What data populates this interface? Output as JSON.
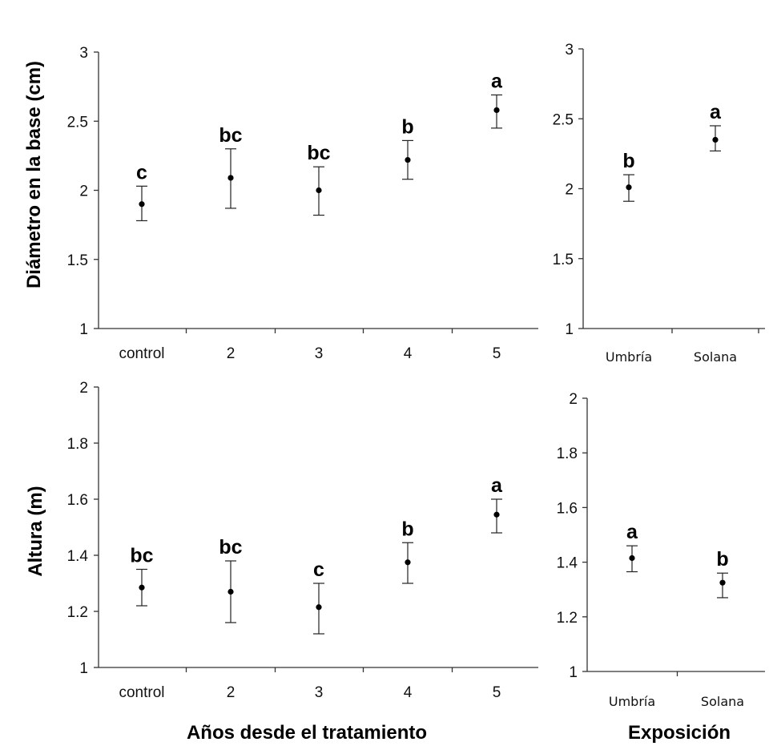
{
  "chart_data": [
    {
      "type": "scatter",
      "panel": "diameter-years",
      "ylabel": "Diámetro en la base (cm)",
      "xlabel": "",
      "ylim": [
        1,
        3
      ],
      "yticks": [
        "1",
        "1.5",
        "2",
        "2.5",
        "3"
      ],
      "categories": [
        "control",
        "2",
        "3",
        "4",
        "5"
      ],
      "values": [
        1.9,
        2.09,
        2.0,
        2.22,
        2.58
      ],
      "err_low": [
        1.78,
        1.87,
        1.82,
        2.08,
        2.45
      ],
      "err_high": [
        2.03,
        2.3,
        2.17,
        2.36,
        2.69
      ],
      "letters": [
        "c",
        "bc",
        "bc",
        "b",
        "a"
      ]
    },
    {
      "type": "scatter",
      "panel": "diameter-exposure",
      "ylabel": "",
      "xlabel": "",
      "ylim": [
        1,
        3
      ],
      "yticks": [
        "1",
        "1.5",
        "2",
        "2.5",
        "3"
      ],
      "categories": [
        "Umbría",
        "Solana"
      ],
      "values": [
        2.01,
        2.35
      ],
      "err_low": [
        1.91,
        2.27
      ],
      "err_high": [
        2.1,
        2.45
      ],
      "letters": [
        "b",
        "a"
      ]
    },
    {
      "type": "scatter",
      "panel": "height-years",
      "ylabel": "Altura (m)",
      "xlabel": "Años desde el tratamiento",
      "ylim": [
        1,
        2
      ],
      "yticks": [
        "1",
        "1.2",
        "1.4",
        "1.6",
        "1.8",
        "2"
      ],
      "categories": [
        "control",
        "2",
        "3",
        "4",
        "5"
      ],
      "values": [
        1.285,
        1.27,
        1.215,
        1.375,
        1.545
      ],
      "err_low": [
        1.22,
        1.16,
        1.12,
        1.3,
        1.48
      ],
      "err_high": [
        1.35,
        1.38,
        1.3,
        1.445,
        1.6
      ],
      "letters": [
        "bc",
        "bc",
        "c",
        "b",
        "a"
      ]
    },
    {
      "type": "scatter",
      "panel": "height-exposure",
      "ylabel": "",
      "xlabel": "Exposición",
      "ylim": [
        1,
        2
      ],
      "yticks": [
        "1",
        "1.2",
        "1.4",
        "1.6",
        "1.8",
        "2"
      ],
      "categories": [
        "Umbría",
        "Solana"
      ],
      "values": [
        1.415,
        1.325
      ],
      "err_low": [
        1.365,
        1.27
      ],
      "err_high": [
        1.46,
        1.36
      ],
      "letters": [
        "a",
        "b"
      ]
    }
  ]
}
